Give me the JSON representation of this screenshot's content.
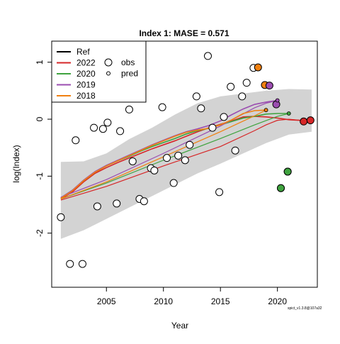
{
  "chart_data": {
    "type": "line",
    "title": "Index 1: MASE = 0.571",
    "xlabel": "Year",
    "ylabel": "log(Index)",
    "xlim": [
      2000.2,
      2023.5
    ],
    "ylim": [
      -2.95,
      1.37
    ],
    "x_ticks": [
      2005,
      2010,
      2015,
      2020
    ],
    "y_ticks": [
      -2,
      -1,
      0,
      1
    ],
    "grid": false,
    "legend_position": "top-left",
    "footnote": "spict_v1.3.8@107a32",
    "colors": {
      "Ref": "#000000",
      "2022": "#d62728",
      "2020": "#3fa33f",
      "2019": "#9b4db0",
      "2018": "#f08010",
      "band": "#d3d3d3",
      "obs_fill": "#ffffff"
    },
    "legend": {
      "series": [
        {
          "label": "Ref",
          "color": "#000000"
        },
        {
          "label": "2022",
          "color": "#d62728"
        },
        {
          "label": "2020",
          "color": "#3fa33f"
        },
        {
          "label": "2019",
          "color": "#9b4db0"
        },
        {
          "label": "2018",
          "color": "#f08010"
        }
      ],
      "points": [
        {
          "label": "obs",
          "symbol": "large-open-circle"
        },
        {
          "label": "pred",
          "symbol": "small-open-circle"
        }
      ]
    },
    "band": {
      "x": [
        2001,
        2003,
        2005,
        2007,
        2009,
        2011,
        2013,
        2015,
        2017,
        2019,
        2021,
        2023
      ],
      "upper": [
        -0.75,
        -0.74,
        -0.6,
        -0.35,
        -0.15,
        0.08,
        0.28,
        0.4,
        0.45,
        0.5,
        0.53,
        0.52
      ],
      "lower": [
        -2.1,
        -1.95,
        -1.75,
        -1.55,
        -1.35,
        -1.15,
        -0.95,
        -0.78,
        -0.6,
        -0.42,
        -0.27,
        -0.22
      ]
    },
    "series": [
      {
        "name": "2022",
        "color": "#d62728",
        "x": [
          2001,
          2005,
          2010,
          2015,
          2018,
          2019,
          2020,
          2021,
          2022,
          2023
        ],
        "y": [
          -1.42,
          -1.18,
          -0.82,
          -0.48,
          -0.2,
          -0.1,
          -0.02,
          0.0,
          -0.02,
          -0.03
        ],
        "fit": {
          "x": [
            2001,
            2002,
            2003,
            2004,
            2005,
            2006,
            2007,
            2008,
            2009,
            2010,
            2011,
            2012,
            2013,
            2014,
            2015,
            2016,
            2017,
            2018,
            2019,
            2020,
            2021,
            2022,
            2023
          ],
          "y": [
            -1.4,
            -1.28,
            -1.1,
            -0.95,
            -0.85,
            -0.76,
            -0.68,
            -0.6,
            -0.52,
            -0.45,
            -0.38,
            -0.3,
            -0.22,
            -0.15,
            -0.09,
            -0.03,
            0.04,
            0.05,
            0.04,
            0.02,
            -0.01,
            -0.02,
            -0.03
          ]
        }
      },
      {
        "name": "2020",
        "color": "#3fa33f",
        "x": [
          2001,
          2005,
          2010,
          2015,
          2018,
          2020,
          2021
        ],
        "y": [
          -1.4,
          -1.12,
          -0.72,
          -0.34,
          -0.1,
          0.05,
          0.1
        ],
        "fit": {
          "x": [
            2001,
            2002,
            2003,
            2004,
            2005,
            2006,
            2007,
            2008,
            2009,
            2010,
            2011,
            2012,
            2013,
            2014,
            2015,
            2016,
            2017,
            2018,
            2019,
            2020,
            2021
          ],
          "y": [
            -1.38,
            -1.25,
            -1.08,
            -0.93,
            -0.82,
            -0.73,
            -0.65,
            -0.56,
            -0.48,
            -0.41,
            -0.34,
            -0.26,
            -0.2,
            -0.16,
            -0.1,
            -0.04,
            0.02,
            0.05,
            0.09,
            0.1,
            0.1
          ]
        }
      },
      {
        "name": "2019",
        "color": "#9b4db0",
        "x": [
          2001,
          2005,
          2010,
          2015,
          2018,
          2019,
          2020
        ],
        "y": [
          -1.37,
          -1.06,
          -0.6,
          -0.12,
          0.2,
          0.28,
          0.33
        ],
        "fit": {
          "x": [
            2001,
            2002,
            2003,
            2004,
            2005,
            2006,
            2007,
            2008,
            2009,
            2010,
            2011,
            2012,
            2013,
            2014,
            2015,
            2016,
            2017,
            2018,
            2019,
            2020
          ],
          "y": [
            -1.38,
            -1.25,
            -1.07,
            -0.92,
            -0.81,
            -0.72,
            -0.63,
            -0.54,
            -0.45,
            -0.37,
            -0.29,
            -0.22,
            -0.17,
            -0.11,
            -0.03,
            0.08,
            0.18,
            0.26,
            0.3,
            0.33
          ]
        }
      },
      {
        "name": "2018",
        "color": "#f08010",
        "x": [
          2001,
          2005,
          2010,
          2015,
          2018,
          2019
        ],
        "y": [
          -1.4,
          -1.1,
          -0.66,
          -0.22,
          0.06,
          0.16
        ],
        "fit": {
          "x": [
            2001,
            2002,
            2003,
            2004,
            2005,
            2006,
            2007,
            2008,
            2009,
            2010,
            2011,
            2012,
            2013,
            2014,
            2015,
            2016,
            2017,
            2018,
            2019
          ],
          "y": [
            -1.39,
            -1.26,
            -1.08,
            -0.93,
            -0.82,
            -0.73,
            -0.64,
            -0.55,
            -0.46,
            -0.38,
            -0.3,
            -0.23,
            -0.19,
            -0.16,
            -0.1,
            -0.01,
            0.1,
            0.15,
            0.16
          ]
        }
      }
    ],
    "obs_points": [
      {
        "x": 2001.0,
        "y": -1.72
      },
      {
        "x": 2001.8,
        "y": -2.54
      },
      {
        "x": 2002.3,
        "y": -0.37
      },
      {
        "x": 2002.9,
        "y": -2.54
      },
      {
        "x": 2003.9,
        "y": -0.15
      },
      {
        "x": 2004.2,
        "y": -1.53
      },
      {
        "x": 2004.7,
        "y": -0.17
      },
      {
        "x": 2005.1,
        "y": -0.06
      },
      {
        "x": 2005.9,
        "y": -1.48
      },
      {
        "x": 2006.2,
        "y": -0.21
      },
      {
        "x": 2007.0,
        "y": 0.17
      },
      {
        "x": 2007.3,
        "y": -0.74
      },
      {
        "x": 2007.9,
        "y": -1.4
      },
      {
        "x": 2008.3,
        "y": -1.44
      },
      {
        "x": 2008.9,
        "y": -0.86
      },
      {
        "x": 2009.2,
        "y": -0.9
      },
      {
        "x": 2009.9,
        "y": 0.21
      },
      {
        "x": 2010.3,
        "y": -0.68
      },
      {
        "x": 2010.9,
        "y": -1.12
      },
      {
        "x": 2011.3,
        "y": -0.64
      },
      {
        "x": 2011.9,
        "y": -0.72
      },
      {
        "x": 2012.3,
        "y": -0.45
      },
      {
        "x": 2012.9,
        "y": 0.4
      },
      {
        "x": 2013.3,
        "y": 0.19
      },
      {
        "x": 2013.9,
        "y": 1.11
      },
      {
        "x": 2014.3,
        "y": -0.15
      },
      {
        "x": 2014.9,
        "y": -1.28
      },
      {
        "x": 2015.3,
        "y": 0.04
      },
      {
        "x": 2015.9,
        "y": 0.57
      },
      {
        "x": 2016.3,
        "y": -0.55
      },
      {
        "x": 2016.9,
        "y": 0.4
      },
      {
        "x": 2017.3,
        "y": 0.64
      },
      {
        "x": 2017.9,
        "y": 0.9
      },
      {
        "x": 2020.3,
        "y": -1.21
      },
      {
        "x": 2020.9,
        "y": -0.92
      }
    ],
    "colored_obs_points": [
      {
        "x": 2018.3,
        "y": 0.91,
        "color": "#f08010"
      },
      {
        "x": 2018.9,
        "y": 0.6,
        "color": "#f08010"
      },
      {
        "x": 2019.3,
        "y": 0.59,
        "color": "#9b4db0"
      },
      {
        "x": 2019.9,
        "y": 0.26,
        "color": "#9b4db0"
      },
      {
        "x": 2020.3,
        "y": -1.21,
        "color": "#3fa33f"
      },
      {
        "x": 2020.9,
        "y": -0.92,
        "color": "#3fa33f"
      },
      {
        "x": 2022.3,
        "y": -0.04,
        "color": "#d62728"
      },
      {
        "x": 2022.9,
        "y": -0.02,
        "color": "#d62728"
      }
    ],
    "pred_points": [
      {
        "x": 2019.0,
        "y": 0.16,
        "color": "#f08010"
      },
      {
        "x": 2020.0,
        "y": 0.33,
        "color": "#9b4db0"
      },
      {
        "x": 2021.0,
        "y": 0.1,
        "color": "#3fa33f"
      }
    ]
  }
}
